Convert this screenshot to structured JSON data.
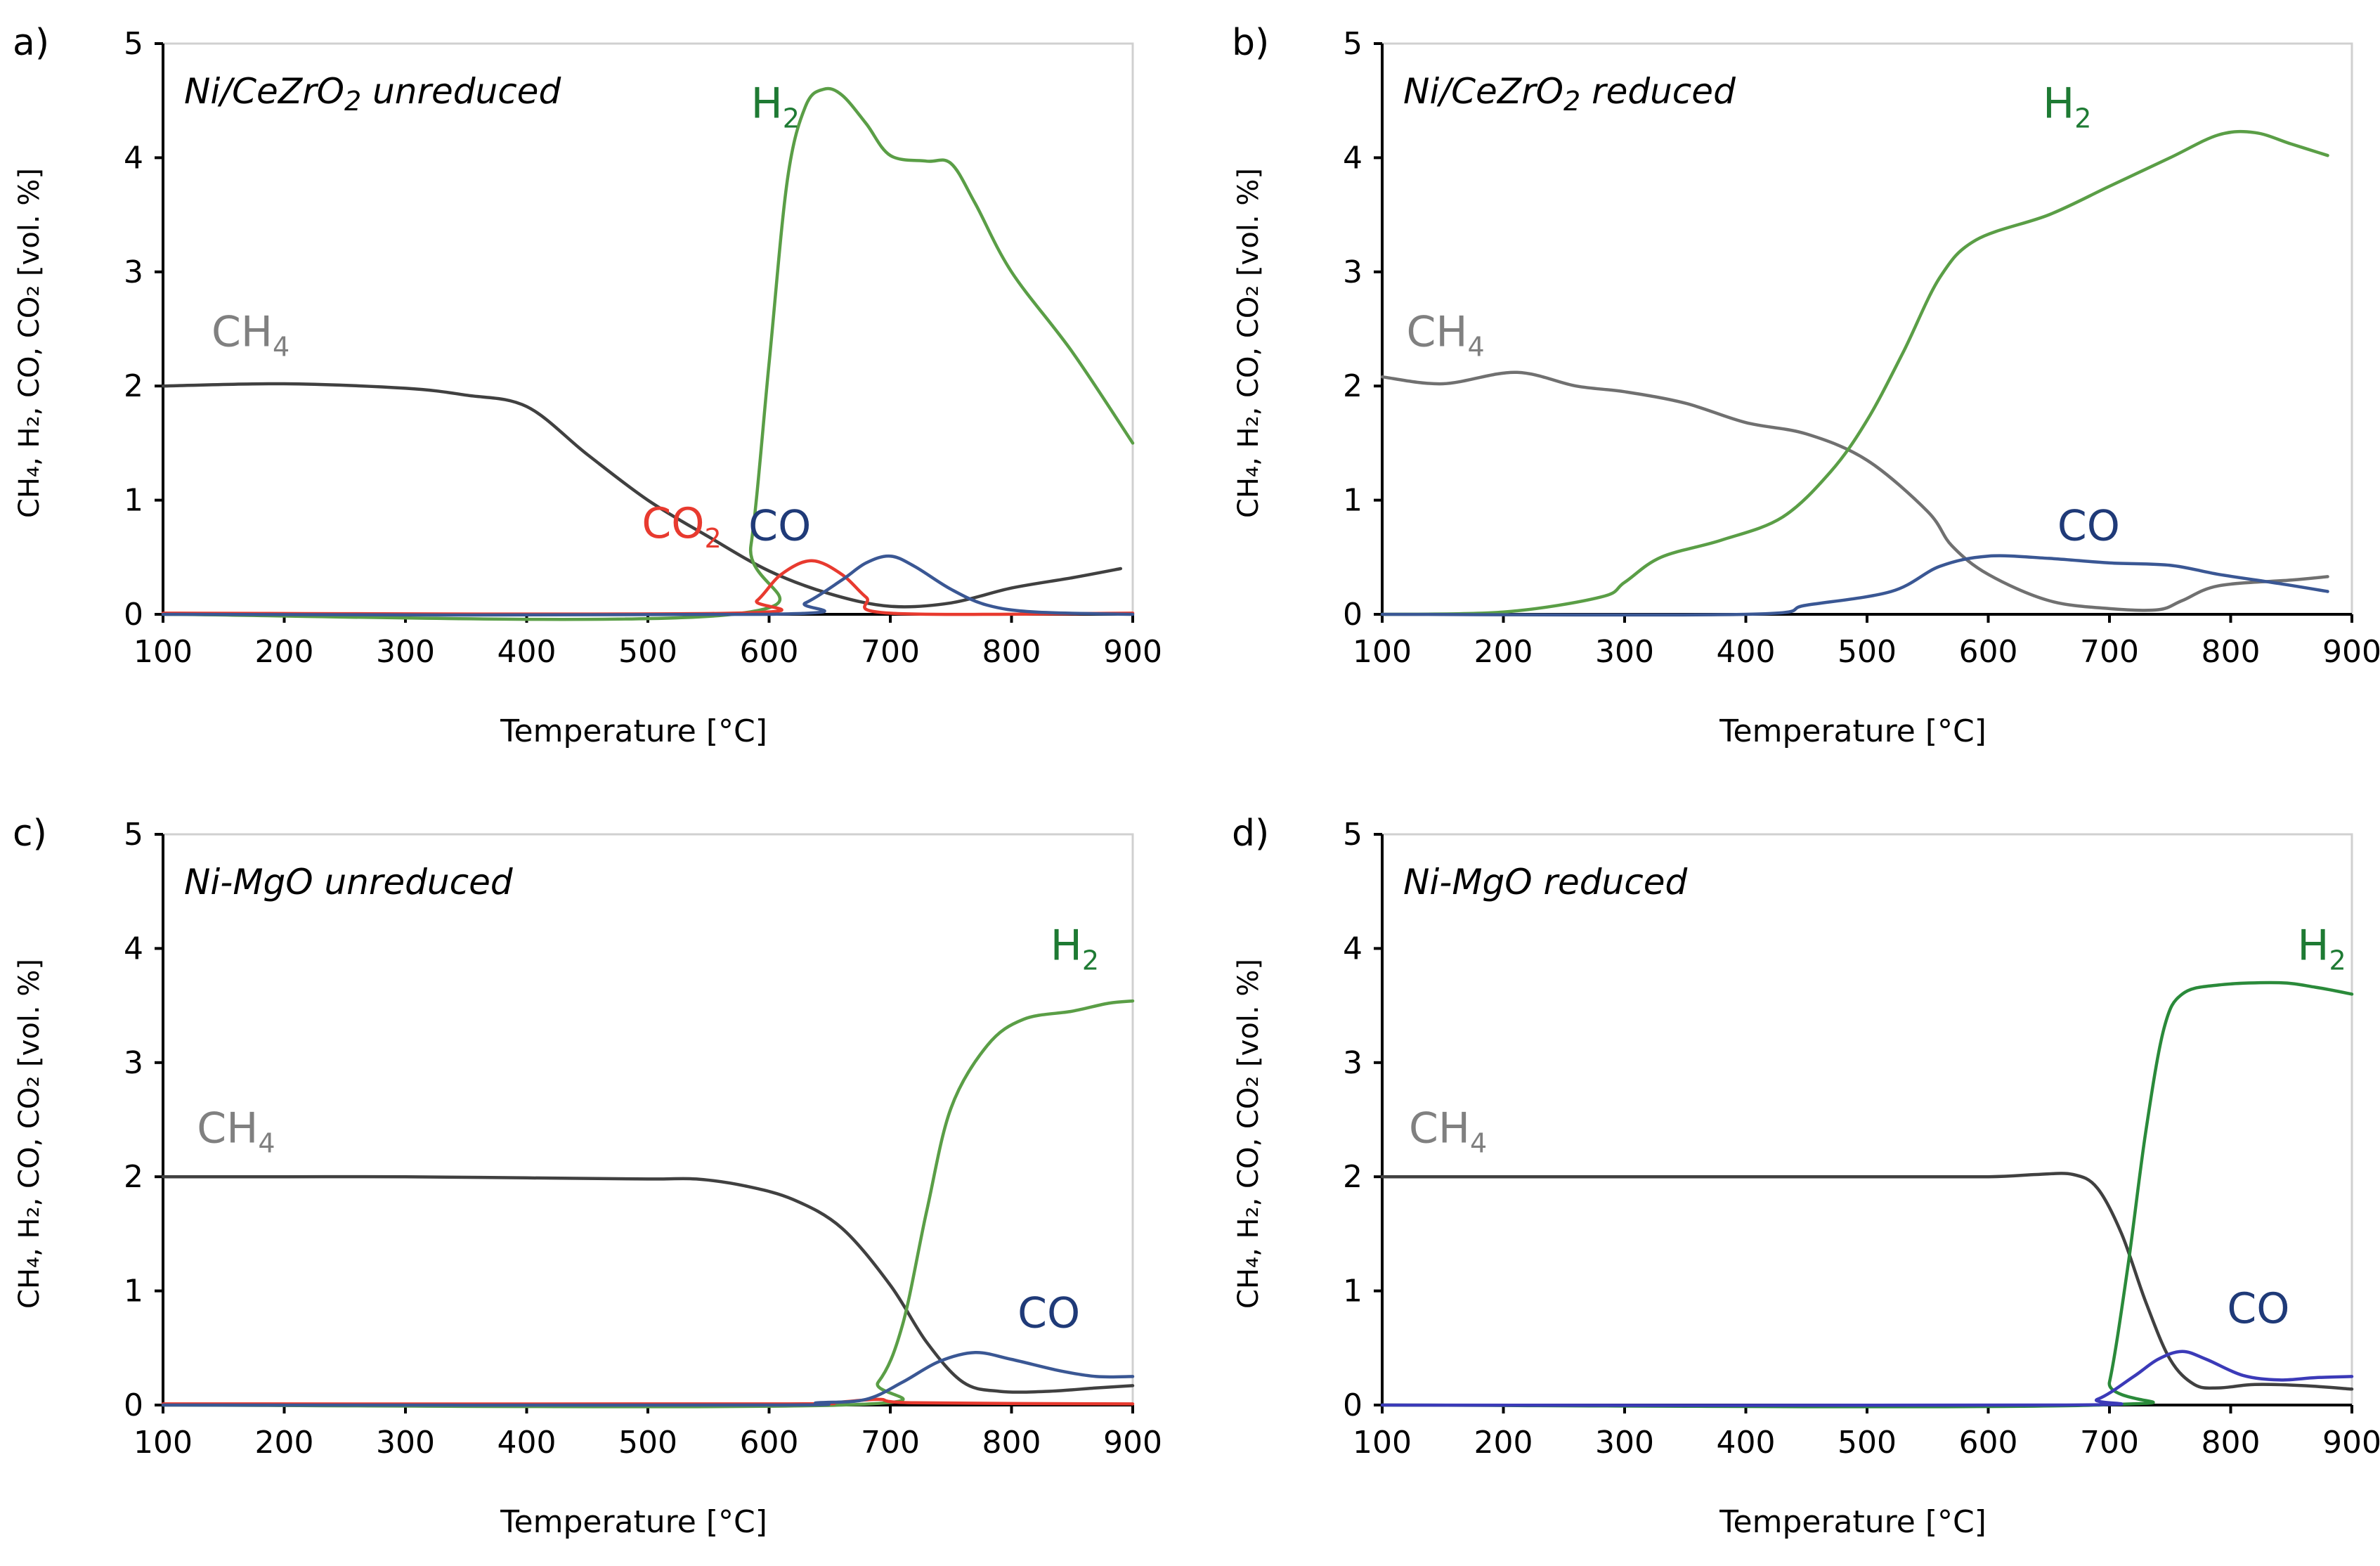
{
  "chart_data": [
    {
      "type": "line",
      "panel": "a)",
      "title": "Ni/CeZrO",
      "title_sub": "2",
      "title_rest": " unreduced",
      "xlabel": "Temperature [°C]",
      "ylabel": "CH₄, H₂, CO, CO₂ [vol. %]",
      "xlim": [
        100,
        900
      ],
      "ylim": [
        0,
        5
      ],
      "xticks": [
        "100",
        "200",
        "300",
        "400",
        "500",
        "600",
        "700",
        "800",
        "900"
      ],
      "yticks": [
        "0",
        "1",
        "2",
        "3",
        "4",
        "5"
      ],
      "series": [
        {
          "name": "CH4",
          "color": "#404040",
          "points": [
            [
              100,
              2.0
            ],
            [
              200,
              2.02
            ],
            [
              300,
              1.98
            ],
            [
              350,
              1.92
            ],
            [
              400,
              1.82
            ],
            [
              450,
              1.4
            ],
            [
              500,
              1.0
            ],
            [
              550,
              0.68
            ],
            [
              600,
              0.38
            ],
            [
              650,
              0.18
            ],
            [
              700,
              0.07
            ],
            [
              750,
              0.1
            ],
            [
              800,
              0.23
            ],
            [
              850,
              0.32
            ],
            [
              890,
              0.4
            ]
          ]
        },
        {
          "name": "H2",
          "color": "#5a9e46",
          "points": [
            [
              100,
              0
            ],
            [
              570,
              0
            ],
            [
              585,
              0.6
            ],
            [
              600,
              2.2
            ],
            [
              615,
              3.8
            ],
            [
              630,
              4.45
            ],
            [
              645,
              4.6
            ],
            [
              660,
              4.55
            ],
            [
              680,
              4.3
            ],
            [
              700,
              4.02
            ],
            [
              730,
              3.97
            ],
            [
              750,
              3.95
            ],
            [
              770,
              3.6
            ],
            [
              800,
              3.0
            ],
            [
              850,
              2.3
            ],
            [
              900,
              1.5
            ]
          ]
        },
        {
          "name": "CO2",
          "color": "#e83a2f",
          "points": [
            [
              100,
              0.01
            ],
            [
              570,
              0.01
            ],
            [
              590,
              0.12
            ],
            [
              610,
              0.35
            ],
            [
              635,
              0.47
            ],
            [
              660,
              0.35
            ],
            [
              680,
              0.15
            ],
            [
              700,
              0.01
            ],
            [
              900,
              0.01
            ]
          ]
        },
        {
          "name": "CO",
          "color": "#3a5794",
          "points": [
            [
              100,
              0
            ],
            [
              600,
              0
            ],
            [
              630,
              0.1
            ],
            [
              660,
              0.3
            ],
            [
              680,
              0.45
            ],
            [
              700,
              0.51
            ],
            [
              720,
              0.42
            ],
            [
              750,
              0.22
            ],
            [
              780,
              0.08
            ],
            [
              820,
              0.02
            ],
            [
              900,
              0
            ]
          ]
        }
      ],
      "annotations": [
        {
          "text": "CH",
          "sub": "4",
          "color": "#808080",
          "x": 140,
          "y": 2.35
        },
        {
          "text": "H",
          "sub": "2",
          "color": "#1e7a33",
          "x": 585,
          "y": 4.35
        },
        {
          "text": "CO",
          "sub": "2",
          "color": "#e83a2f",
          "x": 495,
          "y": 0.67
        },
        {
          "text": "CO",
          "sub": "",
          "color": "#1f3a78",
          "x": 583,
          "y": 0.65
        }
      ]
    },
    {
      "type": "line",
      "panel": "b)",
      "title": "Ni/CeZrO",
      "title_sub": "2",
      "title_rest": " reduced",
      "xlabel": "Temperature [°C]",
      "ylabel": "CH₄, H₂, CO, CO₂ [vol. %]",
      "xlim": [
        100,
        900
      ],
      "ylim": [
        0,
        5
      ],
      "xticks": [
        "100",
        "200",
        "300",
        "400",
        "500",
        "600",
        "700",
        "800",
        "900"
      ],
      "yticks": [
        "0",
        "1",
        "2",
        "3",
        "4",
        "5"
      ],
      "series": [
        {
          "name": "CH4",
          "color": "#707070",
          "points": [
            [
              100,
              2.08
            ],
            [
              150,
              2.02
            ],
            [
              210,
              2.12
            ],
            [
              260,
              2.0
            ],
            [
              300,
              1.95
            ],
            [
              350,
              1.85
            ],
            [
              400,
              1.68
            ],
            [
              450,
              1.58
            ],
            [
              500,
              1.35
            ],
            [
              550,
              0.9
            ],
            [
              570,
              0.6
            ],
            [
              600,
              0.35
            ],
            [
              650,
              0.12
            ],
            [
              700,
              0.05
            ],
            [
              740,
              0.04
            ],
            [
              760,
              0.12
            ],
            [
              790,
              0.25
            ],
            [
              850,
              0.3
            ],
            [
              880,
              0.33
            ]
          ]
        },
        {
          "name": "H2",
          "color": "#5a9e46",
          "points": [
            [
              100,
              0
            ],
            [
              200,
              0.02
            ],
            [
              280,
              0.15
            ],
            [
              300,
              0.28
            ],
            [
              330,
              0.5
            ],
            [
              380,
              0.65
            ],
            [
              430,
              0.85
            ],
            [
              470,
              1.25
            ],
            [
              500,
              1.7
            ],
            [
              530,
              2.3
            ],
            [
              560,
              2.95
            ],
            [
              590,
              3.28
            ],
            [
              650,
              3.5
            ],
            [
              700,
              3.75
            ],
            [
              750,
              4.0
            ],
            [
              790,
              4.2
            ],
            [
              820,
              4.22
            ],
            [
              850,
              4.12
            ],
            [
              880,
              4.02
            ]
          ]
        },
        {
          "name": "CO",
          "color": "#3a5794",
          "points": [
            [
              100,
              0
            ],
            [
              400,
              0
            ],
            [
              450,
              0.08
            ],
            [
              520,
              0.2
            ],
            [
              560,
              0.42
            ],
            [
              600,
              0.51
            ],
            [
              650,
              0.49
            ],
            [
              700,
              0.45
            ],
            [
              750,
              0.43
            ],
            [
              790,
              0.35
            ],
            [
              840,
              0.27
            ],
            [
              880,
              0.2
            ]
          ]
        }
      ],
      "annotations": [
        {
          "text": "CH",
          "sub": "4",
          "color": "#808080",
          "x": 120,
          "y": 2.35
        },
        {
          "text": "H",
          "sub": "2",
          "color": "#1e7a33",
          "x": 645,
          "y": 4.35
        },
        {
          "text": "CO",
          "sub": "",
          "color": "#1f3a78",
          "x": 657,
          "y": 0.65
        }
      ]
    },
    {
      "type": "line",
      "panel": "c)",
      "title": "Ni-MgO unreduced",
      "title_sub": "",
      "title_rest": "",
      "xlabel": "Temperature [°C]",
      "ylabel": "CH₄, H₂, CO, CO₂ [vol. %]",
      "xlim": [
        100,
        900
      ],
      "ylim": [
        0,
        5
      ],
      "xticks": [
        "100",
        "200",
        "300",
        "400",
        "500",
        "600",
        "700",
        "800",
        "900"
      ],
      "yticks": [
        "0",
        "1",
        "2",
        "3",
        "4",
        "5"
      ],
      "series": [
        {
          "name": "CH4",
          "color": "#404040",
          "points": [
            [
              100,
              2.0
            ],
            [
              200,
              2.0
            ],
            [
              300,
              2.0
            ],
            [
              400,
              1.99
            ],
            [
              500,
              1.98
            ],
            [
              540,
              1.98
            ],
            [
              580,
              1.92
            ],
            [
              620,
              1.8
            ],
            [
              660,
              1.55
            ],
            [
              700,
              1.05
            ],
            [
              730,
              0.55
            ],
            [
              760,
              0.2
            ],
            [
              790,
              0.12
            ],
            [
              830,
              0.12
            ],
            [
              870,
              0.15
            ],
            [
              900,
              0.17
            ]
          ]
        },
        {
          "name": "H2",
          "color": "#5a9e46",
          "points": [
            [
              100,
              0
            ],
            [
              660,
              0
            ],
            [
              690,
              0.2
            ],
            [
              710,
              0.7
            ],
            [
              730,
              1.7
            ],
            [
              750,
              2.6
            ],
            [
              780,
              3.15
            ],
            [
              810,
              3.38
            ],
            [
              850,
              3.45
            ],
            [
              880,
              3.52
            ],
            [
              900,
              3.54
            ]
          ]
        },
        {
          "name": "CO2",
          "color": "#e83a2f",
          "points": [
            [
              100,
              0.01
            ],
            [
              600,
              0.01
            ],
            [
              650,
              0.02
            ],
            [
              690,
              0.05
            ],
            [
              720,
              0.02
            ],
            [
              900,
              0.01
            ]
          ]
        },
        {
          "name": "CO",
          "color": "#3a5794",
          "points": [
            [
              100,
              0
            ],
            [
              600,
              0
            ],
            [
              640,
              0.02
            ],
            [
              680,
              0.05
            ],
            [
              710,
              0.2
            ],
            [
              740,
              0.38
            ],
            [
              770,
              0.46
            ],
            [
              800,
              0.4
            ],
            [
              840,
              0.3
            ],
            [
              870,
              0.25
            ],
            [
              900,
              0.25
            ]
          ]
        }
      ],
      "annotations": [
        {
          "text": "CH",
          "sub": "4",
          "color": "#808080",
          "x": 128,
          "y": 2.3
        },
        {
          "text": "H",
          "sub": "2",
          "color": "#1e7a33",
          "x": 832,
          "y": 3.9
        },
        {
          "text": "CO",
          "sub": "",
          "color": "#1f3a78",
          "x": 805,
          "y": 0.68
        }
      ]
    },
    {
      "type": "line",
      "panel": "d)",
      "title": "Ni-MgO reduced",
      "title_sub": "",
      "title_rest": "",
      "xlabel": "Temperature [°C]",
      "ylabel": "CH₄, H₂, CO, CO₂ [vol. %]",
      "xlim": [
        100,
        900
      ],
      "ylim": [
        0,
        5
      ],
      "xticks": [
        "100",
        "200",
        "300",
        "400",
        "500",
        "600",
        "700",
        "800",
        "900"
      ],
      "yticks": [
        "0",
        "1",
        "2",
        "3",
        "4",
        "5"
      ],
      "series": [
        {
          "name": "CH4",
          "color": "#404040",
          "points": [
            [
              100,
              2.0
            ],
            [
              300,
              2.0
            ],
            [
              500,
              2.0
            ],
            [
              600,
              2.0
            ],
            [
              640,
              2.02
            ],
            [
              670,
              2.02
            ],
            [
              690,
              1.9
            ],
            [
              710,
              1.5
            ],
            [
              730,
              0.9
            ],
            [
              750,
              0.4
            ],
            [
              770,
              0.18
            ],
            [
              790,
              0.15
            ],
            [
              820,
              0.18
            ],
            [
              860,
              0.17
            ],
            [
              900,
              0.14
            ]
          ]
        },
        {
          "name": "H2",
          "color": "#2a8a3a",
          "points": [
            [
              100,
              0
            ],
            [
              690,
              0
            ],
            [
              700,
              0.2
            ],
            [
              715,
              1.2
            ],
            [
              730,
              2.4
            ],
            [
              745,
              3.3
            ],
            [
              760,
              3.6
            ],
            [
              790,
              3.68
            ],
            [
              840,
              3.7
            ],
            [
              870,
              3.66
            ],
            [
              900,
              3.6
            ]
          ]
        },
        {
          "name": "CO",
          "color": "#3b3ab8",
          "points": [
            [
              100,
              0
            ],
            [
              660,
              0
            ],
            [
              690,
              0.05
            ],
            [
              720,
              0.25
            ],
            [
              740,
              0.4
            ],
            [
              760,
              0.47
            ],
            [
              780,
              0.4
            ],
            [
              810,
              0.26
            ],
            [
              840,
              0.22
            ],
            [
              870,
              0.24
            ],
            [
              900,
              0.25
            ]
          ]
        }
      ],
      "annotations": [
        {
          "text": "CH",
          "sub": "4",
          "color": "#808080",
          "x": 122,
          "y": 2.3
        },
        {
          "text": "H",
          "sub": "2",
          "color": "#1e7a33",
          "x": 855,
          "y": 3.9
        },
        {
          "text": "CO",
          "sub": "",
          "color": "#1f3a78",
          "x": 797,
          "y": 0.72
        }
      ]
    }
  ]
}
